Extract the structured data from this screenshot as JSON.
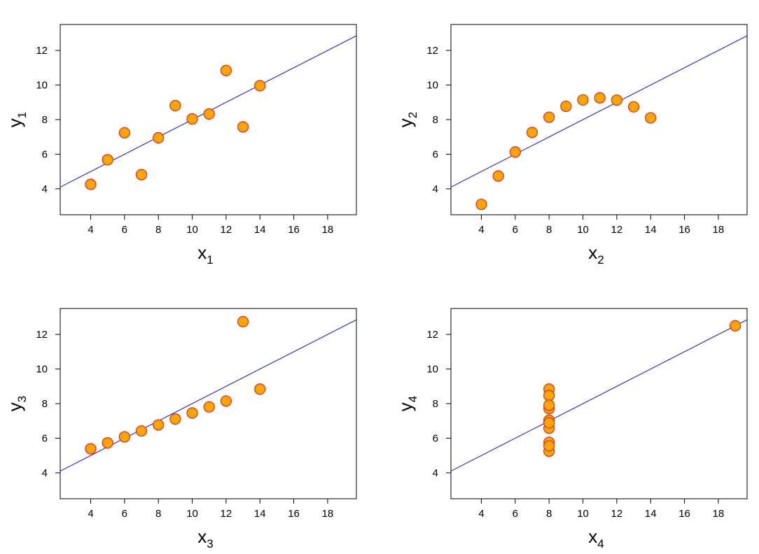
{
  "style": {
    "point_fill": "#ffa500",
    "point_stroke": "#e8261e",
    "fit_line_color": "#1f1fff",
    "frame_color": "#000000"
  },
  "chart_data": [
    {
      "type": "scatter",
      "xlabel": "x",
      "xlabel_sub": "1",
      "ylabel": "y",
      "ylabel_sub": "1",
      "xlim": [
        2.2,
        19.7
      ],
      "ylim": [
        2.5,
        13.5
      ],
      "xticks": [
        4,
        6,
        8,
        10,
        12,
        14,
        16,
        18
      ],
      "yticks": [
        4,
        6,
        8,
        10,
        12
      ],
      "grid": false,
      "x": [
        10,
        8,
        13,
        9,
        11,
        14,
        6,
        4,
        12,
        7,
        5
      ],
      "y": [
        8.04,
        6.95,
        7.58,
        8.81,
        8.33,
        9.96,
        7.24,
        4.26,
        10.84,
        4.82,
        5.68
      ],
      "fit_line": {
        "intercept": 3.0,
        "slope": 0.5
      }
    },
    {
      "type": "scatter",
      "xlabel": "x",
      "xlabel_sub": "2",
      "ylabel": "y",
      "ylabel_sub": "2",
      "xlim": [
        2.2,
        19.7
      ],
      "ylim": [
        2.5,
        13.5
      ],
      "xticks": [
        4,
        6,
        8,
        10,
        12,
        14,
        16,
        18
      ],
      "yticks": [
        4,
        6,
        8,
        10,
        12
      ],
      "grid": false,
      "x": [
        10,
        8,
        13,
        9,
        11,
        14,
        6,
        4,
        12,
        7,
        5
      ],
      "y": [
        9.14,
        8.14,
        8.74,
        8.77,
        9.26,
        8.1,
        6.13,
        3.1,
        9.13,
        7.26,
        4.74
      ],
      "fit_line": {
        "intercept": 3.0,
        "slope": 0.5
      }
    },
    {
      "type": "scatter",
      "xlabel": "x",
      "xlabel_sub": "3",
      "ylabel": "y",
      "ylabel_sub": "3",
      "xlim": [
        2.2,
        19.7
      ],
      "ylim": [
        2.5,
        13.5
      ],
      "xticks": [
        4,
        6,
        8,
        10,
        12,
        14,
        16,
        18
      ],
      "yticks": [
        4,
        6,
        8,
        10,
        12
      ],
      "grid": false,
      "x": [
        10,
        8,
        13,
        9,
        11,
        14,
        6,
        4,
        12,
        7,
        5
      ],
      "y": [
        7.46,
        6.77,
        12.74,
        7.11,
        7.81,
        8.84,
        6.08,
        5.39,
        8.15,
        6.42,
        5.73
      ],
      "fit_line": {
        "intercept": 3.0,
        "slope": 0.5
      }
    },
    {
      "type": "scatter",
      "xlabel": "x",
      "xlabel_sub": "4",
      "ylabel": "y",
      "ylabel_sub": "4",
      "xlim": [
        2.2,
        19.7
      ],
      "ylim": [
        2.5,
        13.5
      ],
      "xticks": [
        4,
        6,
        8,
        10,
        12,
        14,
        16,
        18
      ],
      "yticks": [
        4,
        6,
        8,
        10,
        12
      ],
      "grid": false,
      "x": [
        8,
        8,
        8,
        8,
        8,
        8,
        8,
        19,
        8,
        8,
        8
      ],
      "y": [
        6.58,
        5.76,
        7.71,
        8.84,
        8.47,
        7.04,
        5.25,
        12.5,
        5.56,
        7.91,
        6.89
      ],
      "fit_line": {
        "intercept": 3.0,
        "slope": 0.5
      }
    }
  ]
}
